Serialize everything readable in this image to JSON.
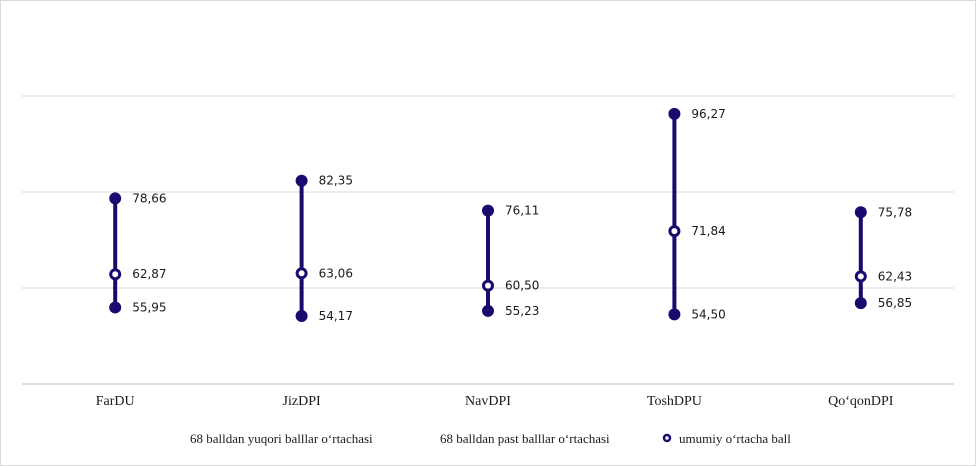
{
  "chart_data": {
    "type": "line",
    "title": "",
    "xlabel": "",
    "ylabel": "",
    "ylim": [
      40,
      100
    ],
    "grid": true,
    "legend_position": "bottom",
    "colors": {
      "series": "#1a0a6e",
      "grid": "#d9d9d9",
      "axis": "#bfbfbf"
    },
    "categories": [
      "FarDU",
      "JizDPI",
      "NavDPI",
      "ToshDPU",
      "Qo‘qonDPI"
    ],
    "series": [
      {
        "name": "68 balldan yuqori balllar o‘rtachasi",
        "marker": "filled-circle",
        "values": [
          78.66,
          82.35,
          76.11,
          96.27,
          75.78
        ],
        "labels": [
          "78,66",
          "82,35",
          "76,11",
          "96,27",
          "75,78"
        ]
      },
      {
        "name": "68 balldan past balllar o‘rtachasi",
        "marker": "filled-circle",
        "values": [
          55.95,
          54.17,
          55.23,
          54.5,
          56.85
        ],
        "labels": [
          "55,95",
          "54,17",
          "55,23",
          "54,50",
          "56,85"
        ]
      },
      {
        "name": "umumiy o‘rtacha ball",
        "marker": "ring-circle",
        "values": [
          62.87,
          63.06,
          60.5,
          71.84,
          62.43
        ],
        "labels": [
          "62,87",
          "63,06",
          "60,50",
          "71,84",
          "62,43"
        ]
      }
    ]
  }
}
